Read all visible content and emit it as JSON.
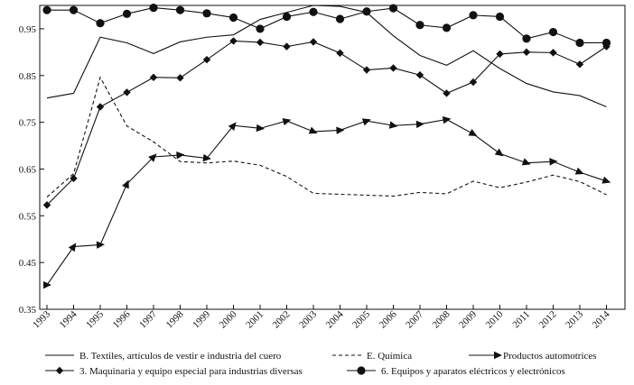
{
  "chart_data": {
    "type": "line",
    "title": "",
    "xlabel": "",
    "ylabel": "",
    "x": [
      "1993",
      "1994",
      "1995",
      "1996",
      "1997",
      "1998",
      "1999",
      "2000",
      "2001",
      "2002",
      "2003",
      "2004",
      "2005",
      "2006",
      "2007",
      "2008",
      "2009",
      "2010",
      "2011",
      "2012",
      "2013",
      "2014"
    ],
    "yticks": [
      "0.35",
      "0.45",
      "0.55",
      "0.65",
      "0.75",
      "0.85",
      "0.95"
    ],
    "ylim": [
      0.35,
      1.0
    ],
    "grid": false,
    "legend_position": "bottom",
    "series": [
      {
        "name": "B. Textiles, artículos de vestir e industria del cuero",
        "style": "solid",
        "marker": "none",
        "color": "#111111",
        "values": [
          0.802,
          0.812,
          0.932,
          0.92,
          0.897,
          0.922,
          0.932,
          0.937,
          0.97,
          0.985,
          1.0,
          0.998,
          0.985,
          0.935,
          0.893,
          0.872,
          0.903,
          0.865,
          0.833,
          0.815,
          0.807,
          0.783
        ]
      },
      {
        "name": "E. Química",
        "style": "dashed",
        "marker": "none",
        "color": "#111111",
        "values": [
          0.59,
          0.64,
          0.846,
          0.742,
          0.708,
          0.666,
          0.663,
          0.667,
          0.658,
          0.634,
          0.598,
          0.596,
          0.594,
          0.592,
          0.6,
          0.597,
          0.624,
          0.61,
          0.622,
          0.637,
          0.623,
          0.595
        ]
      },
      {
        "name": "Productos automotrices",
        "style": "solid",
        "marker": "arrow",
        "color": "#111111",
        "values": [
          0.402,
          0.484,
          0.488,
          0.618,
          0.676,
          0.68,
          0.673,
          0.743,
          0.737,
          0.753,
          0.73,
          0.733,
          0.753,
          0.743,
          0.746,
          0.756,
          0.725,
          0.683,
          0.663,
          0.666,
          0.643,
          0.624
        ]
      },
      {
        "name": "3. Maquinaria y equipo especial para industrias diversas",
        "style": "solid",
        "marker": "diamond",
        "color": "#111111",
        "values": [
          0.573,
          0.63,
          0.783,
          0.814,
          0.846,
          0.845,
          0.884,
          0.924,
          0.921,
          0.912,
          0.922,
          0.898,
          0.862,
          0.866,
          0.851,
          0.812,
          0.836,
          0.896,
          0.9,
          0.899,
          0.874,
          0.912
        ]
      },
      {
        "name": "6. Equipos y aparatos eléctricos y electrónicos",
        "style": "solid",
        "marker": "circle",
        "color": "#111111",
        "values": [
          0.99,
          0.99,
          0.962,
          0.982,
          0.995,
          0.99,
          0.983,
          0.974,
          0.95,
          0.976,
          0.986,
          0.971,
          0.987,
          0.994,
          0.958,
          0.952,
          0.979,
          0.976,
          0.929,
          0.943,
          0.92,
          0.92
        ]
      }
    ]
  }
}
